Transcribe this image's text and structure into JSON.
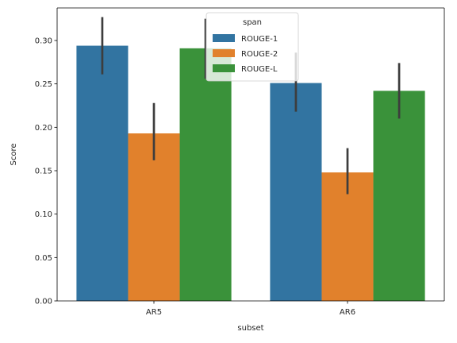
{
  "chart_data": {
    "type": "bar",
    "xlabel": "subset",
    "ylabel": "Score",
    "categories": [
      "AR5",
      "AR6"
    ],
    "ylim": [
      0,
      0.3375
    ],
    "yticks": [
      0.0,
      0.05,
      0.1,
      0.15,
      0.2,
      0.25,
      0.3
    ],
    "ytick_labels": [
      "0.00",
      "0.05",
      "0.10",
      "0.15",
      "0.20",
      "0.25",
      "0.30"
    ],
    "legend": {
      "title": "span",
      "placement": "top-center"
    },
    "grid": false,
    "series": [
      {
        "name": "ROUGE-1",
        "color": "#3274a1",
        "values": [
          0.294,
          0.251
        ],
        "ci_low": [
          0.261,
          0.218
        ],
        "ci_high": [
          0.327,
          0.286
        ]
      },
      {
        "name": "ROUGE-2",
        "color": "#e1812c",
        "values": [
          0.193,
          0.148
        ],
        "ci_low": [
          0.162,
          0.123
        ],
        "ci_high": [
          0.228,
          0.176
        ]
      },
      {
        "name": "ROUGE-L",
        "color": "#3a923a",
        "values": [
          0.291,
          0.242
        ],
        "ci_low": [
          0.256,
          0.21
        ],
        "ci_high": [
          0.325,
          0.274
        ]
      }
    ]
  }
}
